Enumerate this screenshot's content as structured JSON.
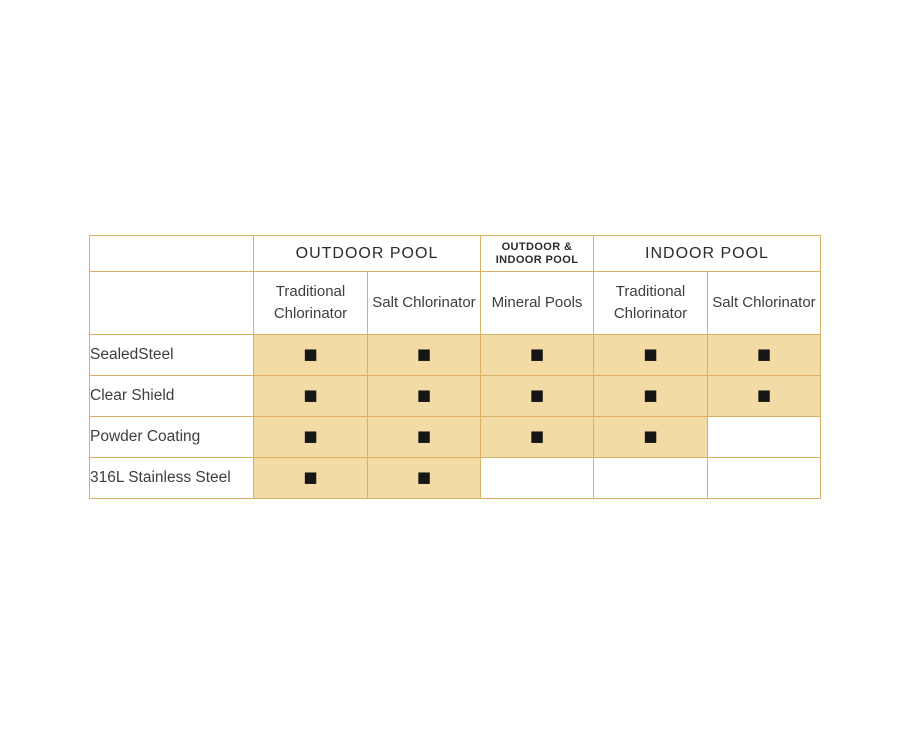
{
  "chart_data": {
    "type": "table",
    "description_semantic": "pool-product-compatibility-matrix",
    "col_groups": [
      {
        "label": "OUTDOOR POOL",
        "span": 2
      },
      {
        "label": "OUTDOOR & INDOOR POOL",
        "span": 1
      },
      {
        "label": "INDOOR POOL",
        "span": 2
      }
    ],
    "columns": [
      "Traditional Chlorinator",
      "Salt Chlorinator",
      "Mineral Pools",
      "Traditional Chlorinator",
      "Salt Chlorinator"
    ],
    "rows": [
      {
        "label": "SealedSteel",
        "compat": [
          true,
          true,
          true,
          true,
          true
        ]
      },
      {
        "label": "Clear Shield",
        "compat": [
          true,
          true,
          true,
          true,
          true
        ]
      },
      {
        "label": "Powder Coating",
        "compat": [
          true,
          true,
          true,
          true,
          false
        ]
      },
      {
        "label": "316L Stainless Steel",
        "compat": [
          true,
          true,
          false,
          false,
          false
        ]
      }
    ],
    "marker_glyph": "■",
    "colors": {
      "cell_fill": "#f2dba4",
      "grid_border": "#d8b162",
      "marker": "#161616",
      "header_text": "#2b2b2b",
      "body_text": "#3e3e3e"
    }
  }
}
